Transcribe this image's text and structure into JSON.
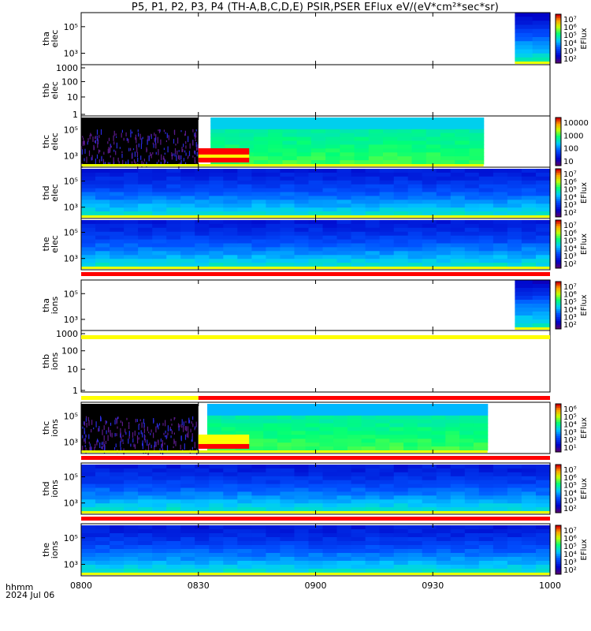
{
  "title": "P5, P1, P2, P3, P4 (TH-A,B,C,D,E) PSIR,PSER EFlux eV/(eV*cm²*sec*sr)",
  "footer": {
    "label1": "hhmm",
    "label2": "2024 Jul 06"
  },
  "xaxis": {
    "ticks": [
      "0800",
      "0830",
      "0900",
      "0930",
      "1000"
    ],
    "range": [
      "08:00",
      "10:00"
    ]
  },
  "colors": {
    "red": "#ff0000",
    "yellow": "#ffff00",
    "black": "#000000"
  },
  "chart_data": {
    "type": "heatmap",
    "panels": [
      {
        "label1": "tha",
        "label2": "elec",
        "yticks": [
          "10⁵",
          "10³"
        ],
        "yscale": "log",
        "data_start": "09:51",
        "data_end": "10:00",
        "colorbar": {
          "ticks": [
            "10⁷",
            "10⁶",
            "10⁵",
            "10⁴",
            "10³",
            "10²"
          ],
          "label": "EFlux"
        }
      },
      {
        "label1": "thb",
        "label2": "elec",
        "yticks": [
          "1000",
          "100",
          "10",
          "1"
        ],
        "yscale": "log",
        "data_start": null,
        "data_end": null,
        "colorbar": null
      },
      {
        "label1": "thc",
        "label2": "elec",
        "yticks": [
          "10⁵",
          "10³"
        ],
        "yscale": "log",
        "data_start": "08:00",
        "data_end": "09:43",
        "colorbar": {
          "ticks": [
            "10000",
            "1000",
            "100",
            "10"
          ],
          "label": ""
        }
      },
      {
        "label1": "thd",
        "label2": "elec",
        "yticks": [
          "10⁵",
          "10³"
        ],
        "yscale": "log",
        "data_start": "08:00",
        "data_end": "10:00",
        "colorbar": {
          "ticks": [
            "10⁷",
            "10⁶",
            "10⁵",
            "10⁴",
            "10³",
            "10²"
          ],
          "label": "EFlux"
        }
      },
      {
        "label1": "the",
        "label2": "elec",
        "yticks": [
          "10⁵",
          "10³"
        ],
        "yscale": "log",
        "data_start": "08:00",
        "data_end": "10:00",
        "colorbar": {
          "ticks": [
            "10⁷",
            "10⁶",
            "10⁵",
            "10⁴",
            "10³",
            "10²"
          ],
          "label": "EFlux"
        }
      },
      {
        "label1": "tha",
        "label2": "ions",
        "yticks": [
          "10⁵",
          "10³"
        ],
        "yscale": "log",
        "data_start": "09:51",
        "data_end": "10:00",
        "colorbar": {
          "ticks": [
            "10⁷",
            "10⁶",
            "10⁵",
            "10⁴",
            "10³",
            "10²"
          ],
          "label": "EFlux"
        }
      },
      {
        "label1": "thb",
        "label2": "ions",
        "yticks": [
          "1000",
          "100",
          "10",
          "1"
        ],
        "yscale": "log",
        "data_start": null,
        "data_end": null,
        "colorbar": null
      },
      {
        "label1": "thc",
        "label2": "ions",
        "yticks": [
          "10⁵",
          "10³"
        ],
        "yscale": "log",
        "data_start": "08:00",
        "data_end": "09:44",
        "colorbar": {
          "ticks": [
            "10⁶",
            "10⁵",
            "10⁴",
            "10³",
            "10²",
            "10¹"
          ],
          "label": "EFlux"
        }
      },
      {
        "label1": "thd",
        "label2": "ions",
        "yticks": [
          "10⁵",
          "10³"
        ],
        "yscale": "log",
        "data_start": "08:00",
        "data_end": "10:00",
        "colorbar": {
          "ticks": [
            "10⁷",
            "10⁶",
            "10⁵",
            "10⁴",
            "10³",
            "10²"
          ],
          "label": "EFlux"
        }
      },
      {
        "label1": "the",
        "label2": "ions",
        "yticks": [
          "10⁵",
          "10³"
        ],
        "yscale": "log",
        "data_start": "08:00",
        "data_end": "10:00",
        "colorbar": {
          "ticks": [
            "10⁷",
            "10⁶",
            "10⁵",
            "10⁴",
            "10³",
            "10²"
          ],
          "label": "EFlux"
        }
      }
    ]
  }
}
